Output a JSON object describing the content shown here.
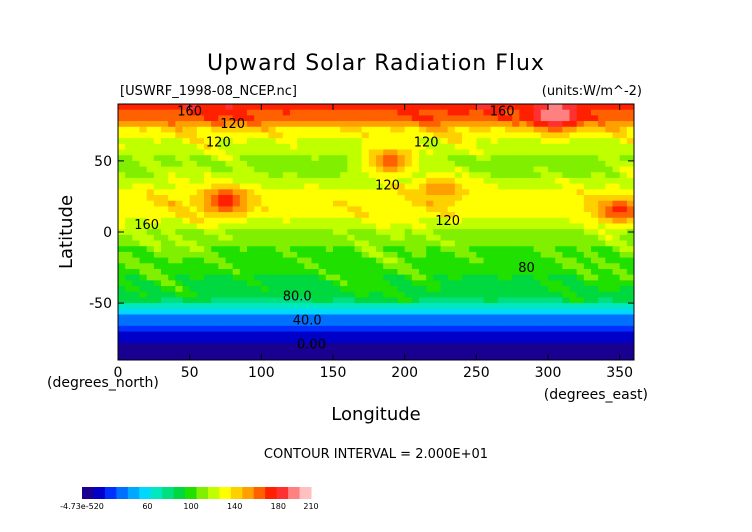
{
  "chart_data": {
    "type": "heatmap",
    "title": "Upward Solar Radiation Flux",
    "file_label": "[USWRF_1998-08_NCEP.nc]",
    "units_label": "(units:W/m^-2)",
    "xlabel": "Longitude",
    "ylabel": "Latitude",
    "x_unit_label": "(degrees_east)",
    "y_unit_label": "(degrees_north)",
    "xlim": [
      0,
      360
    ],
    "ylim": [
      -90,
      90
    ],
    "x_ticks": [
      0,
      50,
      100,
      150,
      200,
      250,
      300,
      350
    ],
    "y_ticks": [
      -50,
      0,
      50
    ],
    "contour_interval_text": "CONTOUR INTERVAL = 2.000E+01",
    "contour_labels": [
      {
        "text": "160",
        "x": 50,
        "y": 82
      },
      {
        "text": "120",
        "x": 80,
        "y": 73
      },
      {
        "text": "120",
        "x": 70,
        "y": 60
      },
      {
        "text": "160",
        "x": 268,
        "y": 82
      },
      {
        "text": "120",
        "x": 215,
        "y": 60
      },
      {
        "text": "120",
        "x": 188,
        "y": 30
      },
      {
        "text": "120",
        "x": 230,
        "y": 5
      },
      {
        "text": "160",
        "x": 20,
        "y": 2
      },
      {
        "text": "80.0",
        "x": 125,
        "y": -48
      },
      {
        "text": "80",
        "x": 285,
        "y": -28
      },
      {
        "text": "40.0",
        "x": 132,
        "y": -65
      },
      {
        "text": "0.00",
        "x": 135,
        "y": -82
      }
    ],
    "zonal_profile": [
      {
        "lat": 90,
        "value": 170
      },
      {
        "lat": 80,
        "value": 160
      },
      {
        "lat": 70,
        "value": 130
      },
      {
        "lat": 60,
        "value": 120
      },
      {
        "lat": 50,
        "value": 110
      },
      {
        "lat": 40,
        "value": 115
      },
      {
        "lat": 30,
        "value": 125
      },
      {
        "lat": 20,
        "value": 130
      },
      {
        "lat": 10,
        "value": 125
      },
      {
        "lat": 0,
        "value": 110
      },
      {
        "lat": -10,
        "value": 105
      },
      {
        "lat": -20,
        "value": 100
      },
      {
        "lat": -30,
        "value": 95
      },
      {
        "lat": -40,
        "value": 90
      },
      {
        "lat": -50,
        "value": 80
      },
      {
        "lat": -55,
        "value": 60
      },
      {
        "lat": -60,
        "value": 40
      },
      {
        "lat": -70,
        "value": 20
      },
      {
        "lat": -80,
        "value": 5
      },
      {
        "lat": -90,
        "value": 0
      }
    ],
    "highlights": [
      {
        "lon": 75,
        "lat": 22,
        "value": 175
      },
      {
        "lon": 305,
        "lat": 82,
        "value": 200
      },
      {
        "lon": 350,
        "lat": 15,
        "value": 170
      },
      {
        "lon": 190,
        "lat": 50,
        "value": 165
      },
      {
        "lon": 225,
        "lat": 30,
        "value": 155
      }
    ],
    "colorbar": {
      "tick_labels": [
        "-4.73e-520",
        "60",
        "100",
        "140",
        "180",
        "210"
      ],
      "tick_values": [
        0,
        60,
        100,
        140,
        180,
        210
      ],
      "min": 0,
      "max": 210,
      "colors": [
        "#1a0090",
        "#0000c8",
        "#0030ff",
        "#0070ff",
        "#00a8ff",
        "#00d8ff",
        "#00e8c0",
        "#00e080",
        "#00d840",
        "#20e000",
        "#80f000",
        "#c0ff00",
        "#ffff00",
        "#ffd000",
        "#ffa000",
        "#ff6000",
        "#ff2000",
        "#ff3030",
        "#ff8080",
        "#ffc0c0"
      ]
    }
  }
}
